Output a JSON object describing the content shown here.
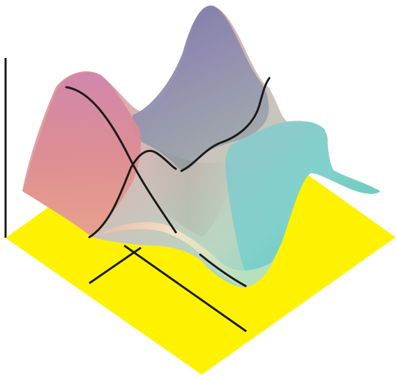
{
  "colors": {
    "background": "#ffffff",
    "base_plane": "#fff200",
    "surface_red": "#e57d72",
    "surface_pink": "#d593b5",
    "surface_purple": "#8a85b5",
    "surface_cream": "#fbe8c6",
    "surface_green": "#a9dfb0",
    "surface_teal": "#6fd0c9",
    "curve": "#1a1a1a"
  },
  "icons": [
    "3d-surface",
    "axis-line",
    "section-curve"
  ]
}
